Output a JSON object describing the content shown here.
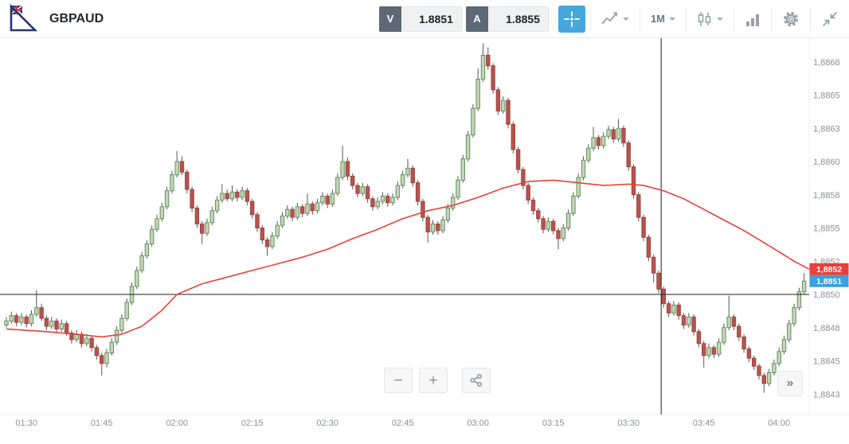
{
  "header": {
    "symbol": "GBPAUD",
    "sell": {
      "label": "V",
      "value": "1.8851"
    },
    "buy": {
      "label": "A",
      "value": "1.8855"
    },
    "timeframe": "1M"
  },
  "controls": {
    "zoom_out": "−",
    "zoom_in": "+",
    "jump_latest": "»"
  },
  "colors": {
    "accent_blue": "#45a7dc",
    "up_fill": "#c5d6bc",
    "up_stroke": "#63905a",
    "down_fill": "#b9544d",
    "down_stroke": "#9a4540",
    "wick": "#53575d",
    "ma_line": "#e8403a",
    "price_line": "#1e1e1e",
    "session_line": "#1e1e1e",
    "bid_badge": "#3ba0dc",
    "ma_badge": "#e8403a",
    "axis_text": "#8b9096"
  },
  "chart_data": {
    "type": "candlestick",
    "symbol": "GBPAUD",
    "interval": "1M",
    "price_base": 1.88,
    "pip": 0.0001,
    "ylim_pips": [
      41.0,
      69.5
    ],
    "hline_pips": 50.0,
    "vline_index": 130.5,
    "last_price_pips": 51.0,
    "last_price_label": "1,8851",
    "ma_label_pips": 51.9,
    "ma_price_label": "1,8852",
    "y_axis": [
      {
        "label": "1,8868",
        "pips": 67.5
      },
      {
        "label": "1,8865",
        "pips": 65.0
      },
      {
        "label": "1,8863",
        "pips": 62.5
      },
      {
        "label": "1,8860",
        "pips": 60.0
      },
      {
        "label": "1,8858",
        "pips": 57.5
      },
      {
        "label": "1,8855",
        "pips": 55.0
      },
      {
        "label": "1,8852",
        "pips": 52.5
      },
      {
        "label": "1,8850",
        "pips": 50.0
      },
      {
        "label": "1,8848",
        "pips": 47.5
      },
      {
        "label": "1,8845",
        "pips": 45.0
      },
      {
        "label": "1,8843",
        "pips": 42.5
      }
    ],
    "x_axis": [
      {
        "label": "01:30",
        "index": 4
      },
      {
        "label": "01:45",
        "index": 19
      },
      {
        "label": "02:00",
        "index": 34
      },
      {
        "label": "02:15",
        "index": 49
      },
      {
        "label": "02:30",
        "index": 64
      },
      {
        "label": "02:45",
        "index": 79
      },
      {
        "label": "03:00",
        "index": 94
      },
      {
        "label": "03:15",
        "index": 109
      },
      {
        "label": "03:30",
        "index": 124
      },
      {
        "label": "03:45",
        "index": 139
      },
      {
        "label": "04:00",
        "index": 154
      }
    ],
    "ma_pips": [
      [
        0,
        47.4
      ],
      [
        8,
        47.2
      ],
      [
        14,
        47.0
      ],
      [
        19,
        46.8
      ],
      [
        23,
        47.0
      ],
      [
        27,
        47.6
      ],
      [
        31,
        48.8
      ],
      [
        34,
        50.0
      ],
      [
        39,
        50.8
      ],
      [
        44,
        51.3
      ],
      [
        49,
        51.8
      ],
      [
        54,
        52.3
      ],
      [
        59,
        52.8
      ],
      [
        64,
        53.4
      ],
      [
        69,
        54.2
      ],
      [
        74,
        54.9
      ],
      [
        79,
        55.7
      ],
      [
        84,
        56.3
      ],
      [
        89,
        56.7
      ],
      [
        94,
        57.3
      ],
      [
        99,
        58.0
      ],
      [
        104,
        58.5
      ],
      [
        109,
        58.6
      ],
      [
        114,
        58.4
      ],
      [
        119,
        58.2
      ],
      [
        124,
        58.3
      ],
      [
        127,
        58.2
      ],
      [
        131,
        57.8
      ],
      [
        135,
        57.2
      ],
      [
        139,
        56.4
      ],
      [
        143,
        55.6
      ],
      [
        147,
        54.8
      ],
      [
        151,
        53.9
      ],
      [
        154,
        53.2
      ],
      [
        157,
        52.5
      ],
      [
        160,
        51.9
      ]
    ],
    "candles_pips": [
      [
        47.7,
        48.3,
        47.5,
        48.0
      ],
      [
        48.0,
        48.7,
        47.8,
        48.4
      ],
      [
        48.4,
        48.6,
        47.6,
        47.9
      ],
      [
        47.9,
        48.6,
        47.7,
        48.3
      ],
      [
        48.3,
        48.5,
        47.5,
        47.8
      ],
      [
        47.8,
        48.8,
        47.6,
        48.5
      ],
      [
        48.5,
        50.3,
        48.3,
        49.0
      ],
      [
        49.0,
        49.3,
        48.0,
        48.2
      ],
      [
        48.2,
        48.4,
        47.3,
        47.6
      ],
      [
        47.6,
        48.3,
        47.4,
        48.0
      ],
      [
        48.0,
        48.2,
        47.1,
        47.4
      ],
      [
        47.4,
        48.1,
        47.2,
        47.8
      ],
      [
        47.8,
        48.0,
        46.9,
        47.1
      ],
      [
        47.1,
        47.3,
        46.3,
        46.6
      ],
      [
        46.6,
        47.3,
        46.4,
        47.0
      ],
      [
        47.0,
        47.2,
        46.0,
        46.3
      ],
      [
        46.3,
        47.0,
        46.1,
        46.7
      ],
      [
        46.7,
        46.9,
        45.7,
        46.0
      ],
      [
        46.0,
        46.2,
        45.1,
        45.4
      ],
      [
        45.4,
        45.6,
        43.9,
        44.8
      ],
      [
        44.8,
        45.9,
        44.5,
        45.6
      ],
      [
        45.6,
        46.7,
        45.4,
        46.4
      ],
      [
        46.4,
        47.6,
        46.2,
        47.3
      ],
      [
        47.3,
        48.5,
        47.1,
        48.2
      ],
      [
        48.2,
        49.7,
        48.0,
        49.4
      ],
      [
        49.4,
        50.9,
        49.2,
        50.6
      ],
      [
        50.6,
        52.1,
        50.4,
        51.8
      ],
      [
        51.8,
        53.2,
        51.6,
        52.9
      ],
      [
        52.9,
        54.1,
        52.7,
        53.8
      ],
      [
        53.8,
        55.2,
        53.6,
        54.9
      ],
      [
        54.9,
        56.0,
        54.7,
        55.7
      ],
      [
        55.7,
        56.9,
        55.5,
        56.6
      ],
      [
        56.6,
        58.1,
        56.4,
        57.8
      ],
      [
        57.8,
        59.3,
        57.6,
        59.0
      ],
      [
        59.0,
        60.8,
        58.8,
        60.0
      ],
      [
        60.0,
        60.4,
        59.0,
        59.2
      ],
      [
        59.2,
        59.4,
        57.6,
        57.9
      ],
      [
        57.9,
        58.1,
        56.2,
        56.5
      ],
      [
        56.5,
        56.7,
        55.0,
        55.3
      ],
      [
        55.3,
        55.5,
        53.8,
        54.6
      ],
      [
        54.6,
        55.7,
        54.4,
        55.4
      ],
      [
        55.4,
        56.6,
        55.2,
        56.3
      ],
      [
        56.3,
        57.4,
        56.1,
        57.1
      ],
      [
        57.1,
        58.3,
        56.9,
        57.6
      ],
      [
        57.6,
        57.9,
        57.0,
        57.2
      ],
      [
        57.2,
        58.2,
        57.0,
        57.7
      ],
      [
        57.7,
        57.9,
        57.0,
        57.3
      ],
      [
        57.3,
        58.1,
        57.1,
        57.8
      ],
      [
        57.8,
        58.0,
        56.7,
        57.0
      ],
      [
        57.0,
        57.2,
        55.7,
        56.0
      ],
      [
        56.0,
        56.2,
        54.7,
        55.0
      ],
      [
        55.0,
        55.2,
        53.8,
        54.1
      ],
      [
        54.1,
        54.3,
        52.9,
        53.6
      ],
      [
        53.6,
        54.7,
        53.4,
        54.4
      ],
      [
        54.4,
        55.5,
        54.2,
        55.2
      ],
      [
        55.2,
        56.2,
        55.0,
        55.9
      ],
      [
        55.9,
        56.7,
        55.7,
        56.4
      ],
      [
        56.4,
        56.6,
        55.5,
        55.8
      ],
      [
        55.8,
        56.9,
        55.6,
        56.6
      ],
      [
        56.6,
        56.8,
        55.8,
        56.1
      ],
      [
        56.1,
        57.6,
        55.9,
        56.8
      ],
      [
        56.8,
        57.0,
        56.0,
        56.3
      ],
      [
        56.3,
        57.2,
        56.1,
        56.9
      ],
      [
        56.9,
        57.7,
        56.7,
        57.4
      ],
      [
        57.4,
        57.6,
        56.5,
        56.8
      ],
      [
        56.8,
        57.9,
        56.6,
        57.6
      ],
      [
        57.6,
        59.1,
        57.4,
        58.8
      ],
      [
        58.8,
        61.2,
        58.6,
        60.0
      ],
      [
        60.0,
        60.3,
        58.6,
        58.9
      ],
      [
        58.9,
        59.1,
        57.9,
        58.2
      ],
      [
        58.2,
        58.4,
        57.3,
        57.6
      ],
      [
        57.6,
        58.4,
        57.4,
        58.1
      ],
      [
        58.1,
        58.3,
        56.9,
        57.2
      ],
      [
        57.2,
        57.4,
        56.3,
        56.6
      ],
      [
        56.6,
        57.3,
        56.4,
        57.0
      ],
      [
        57.0,
        57.7,
        56.8,
        57.4
      ],
      [
        57.4,
        57.6,
        56.6,
        56.9
      ],
      [
        56.9,
        57.6,
        56.7,
        57.3
      ],
      [
        57.3,
        58.5,
        57.1,
        58.2
      ],
      [
        58.2,
        59.3,
        58.0,
        59.0
      ],
      [
        59.0,
        60.2,
        58.8,
        59.5
      ],
      [
        59.5,
        59.7,
        58.1,
        58.4
      ],
      [
        58.4,
        58.6,
        56.7,
        57.0
      ],
      [
        57.0,
        57.2,
        55.5,
        55.8
      ],
      [
        55.8,
        56.0,
        53.9,
        54.7
      ],
      [
        54.7,
        55.6,
        54.5,
        55.3
      ],
      [
        55.3,
        55.5,
        54.5,
        54.8
      ],
      [
        54.8,
        55.9,
        54.6,
        55.6
      ],
      [
        55.6,
        56.8,
        55.4,
        56.5
      ],
      [
        56.5,
        57.6,
        56.3,
        57.3
      ],
      [
        57.3,
        58.9,
        57.1,
        58.6
      ],
      [
        58.6,
        60.5,
        58.4,
        60.2
      ],
      [
        60.2,
        62.3,
        60.0,
        62.0
      ],
      [
        62.0,
        64.3,
        61.8,
        64.0
      ],
      [
        64.0,
        67.0,
        63.8,
        66.2
      ],
      [
        66.2,
        68.9,
        66.0,
        68.0
      ],
      [
        68.0,
        68.6,
        66.9,
        67.2
      ],
      [
        67.2,
        67.4,
        65.1,
        65.4
      ],
      [
        65.4,
        65.6,
        63.5,
        63.8
      ],
      [
        63.8,
        64.9,
        63.6,
        64.6
      ],
      [
        64.6,
        64.8,
        62.5,
        62.8
      ],
      [
        62.8,
        63.0,
        60.6,
        60.9
      ],
      [
        60.9,
        61.1,
        59.1,
        59.4
      ],
      [
        59.4,
        59.6,
        57.9,
        58.2
      ],
      [
        58.2,
        58.4,
        56.8,
        57.1
      ],
      [
        57.1,
        57.3,
        56.0,
        56.3
      ],
      [
        56.3,
        56.5,
        55.4,
        55.7
      ],
      [
        55.7,
        55.9,
        54.6,
        54.9
      ],
      [
        54.9,
        55.8,
        54.7,
        55.5
      ],
      [
        55.5,
        55.7,
        54.5,
        54.8
      ],
      [
        54.8,
        55.0,
        53.4,
        54.2
      ],
      [
        54.2,
        55.3,
        54.0,
        55.0
      ],
      [
        55.0,
        56.4,
        54.8,
        56.1
      ],
      [
        56.1,
        57.7,
        55.9,
        57.4
      ],
      [
        57.4,
        59.1,
        57.2,
        58.8
      ],
      [
        58.8,
        60.4,
        58.6,
        60.1
      ],
      [
        60.1,
        61.3,
        59.9,
        61.0
      ],
      [
        61.0,
        62.6,
        60.8,
        61.8
      ],
      [
        61.8,
        62.0,
        60.9,
        61.2
      ],
      [
        61.2,
        62.2,
        61.0,
        61.9
      ],
      [
        61.9,
        62.7,
        61.7,
        62.4
      ],
      [
        62.4,
        62.6,
        61.4,
        61.7
      ],
      [
        61.7,
        63.2,
        61.5,
        62.5
      ],
      [
        62.5,
        62.7,
        61.1,
        61.4
      ],
      [
        61.4,
        61.6,
        59.3,
        59.6
      ],
      [
        59.6,
        59.8,
        57.2,
        57.5
      ],
      [
        57.5,
        57.7,
        55.5,
        55.8
      ],
      [
        55.8,
        56.0,
        54.0,
        54.3
      ],
      [
        54.3,
        54.5,
        52.5,
        52.8
      ],
      [
        52.8,
        53.0,
        50.9,
        51.6
      ],
      [
        51.6,
        51.8,
        50.1,
        50.4
      ],
      [
        50.4,
        50.6,
        49.0,
        49.3
      ],
      [
        49.3,
        49.5,
        48.3,
        48.6
      ],
      [
        48.6,
        49.5,
        48.4,
        49.2
      ],
      [
        49.2,
        49.4,
        48.1,
        48.4
      ],
      [
        48.4,
        48.6,
        47.4,
        47.7
      ],
      [
        47.7,
        48.6,
        47.5,
        48.3
      ],
      [
        48.3,
        48.5,
        46.9,
        47.2
      ],
      [
        47.2,
        47.4,
        46.0,
        46.3
      ],
      [
        46.3,
        46.5,
        44.5,
        45.4
      ],
      [
        45.4,
        46.3,
        45.2,
        46.0
      ],
      [
        46.0,
        46.2,
        45.2,
        45.5
      ],
      [
        45.5,
        46.7,
        45.3,
        46.4
      ],
      [
        46.4,
        47.8,
        46.2,
        47.5
      ],
      [
        47.5,
        49.9,
        47.3,
        48.3
      ],
      [
        48.3,
        48.5,
        47.3,
        47.6
      ],
      [
        47.6,
        47.8,
        46.5,
        46.8
      ],
      [
        46.8,
        47.0,
        45.6,
        45.9
      ],
      [
        45.9,
        46.1,
        44.9,
        45.2
      ],
      [
        45.2,
        45.4,
        44.3,
        44.6
      ],
      [
        44.6,
        44.8,
        43.6,
        43.9
      ],
      [
        43.9,
        44.1,
        42.6,
        43.3
      ],
      [
        43.3,
        44.4,
        43.1,
        44.1
      ],
      [
        44.1,
        45.1,
        43.9,
        44.8
      ],
      [
        44.8,
        46.0,
        44.6,
        45.7
      ],
      [
        45.7,
        46.9,
        45.5,
        46.6
      ],
      [
        46.6,
        48.1,
        46.4,
        47.8
      ],
      [
        47.8,
        49.3,
        47.6,
        49.0
      ],
      [
        49.0,
        50.5,
        48.8,
        50.2
      ],
      [
        50.2,
        51.6,
        50.0,
        51.0
      ]
    ]
  }
}
